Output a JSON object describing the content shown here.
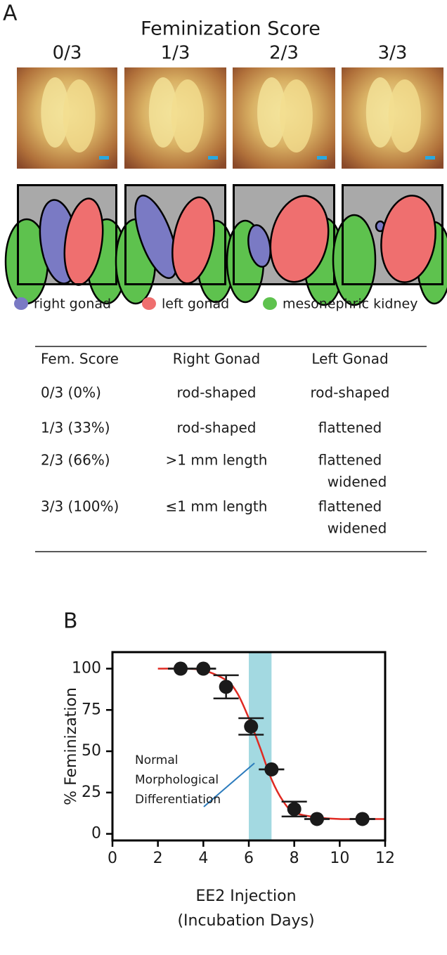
{
  "panel_a": {
    "label": "A",
    "title": "Feminization Score",
    "scores": [
      "0/3",
      "1/3",
      "2/3",
      "3/3"
    ],
    "legend": [
      {
        "label": "right gonad",
        "color": "#7a7ac4"
      },
      {
        "label": "left gonad",
        "color": "#ef6f6f"
      },
      {
        "label": "mesonephric kidney",
        "color": "#5ec24e"
      }
    ],
    "table": {
      "header": [
        "Fem. Score",
        "Right Gonad",
        "Left Gonad"
      ],
      "rows": [
        [
          [
            "0/3 (0%)"
          ],
          [
            "rod-shaped"
          ],
          [
            "rod-shaped"
          ]
        ],
        [
          [
            "1/3 (33%)"
          ],
          [
            "rod-shaped"
          ],
          [
            "flattened"
          ]
        ],
        [
          [
            "2/3 (66%)"
          ],
          [
            ">1 mm length"
          ],
          [
            "flattened",
            "widened"
          ]
        ],
        [
          [
            "3/3 (100%)"
          ],
          [
            "≤1 mm length"
          ],
          [
            "flattened",
            "widened"
          ]
        ]
      ]
    }
  },
  "chart_data": {
    "type": "scatter",
    "panel_label": "B",
    "ylabel": "% Feminization",
    "xlabel": [
      "EE2 Injection",
      "(Incubation Days)"
    ],
    "x": [
      3,
      4,
      5,
      6.1,
      7,
      8,
      9,
      11
    ],
    "values": [
      100,
      100,
      89,
      65,
      39,
      15,
      9,
      9
    ],
    "errors": [
      0,
      0,
      7,
      5,
      0,
      4.5,
      0,
      0
    ],
    "color": "#1a1a1a",
    "fit": {
      "color": "#e02a22",
      "x": [
        2,
        3,
        4,
        5,
        5.5,
        6,
        6.5,
        7,
        7.5,
        8,
        9,
        10,
        11,
        12
      ],
      "values": [
        100,
        100,
        99,
        93,
        85,
        70,
        52,
        33,
        20,
        13,
        10,
        9,
        9,
        9
      ]
    },
    "band": {
      "x": [
        6,
        7
      ],
      "color": "#a3d9e1"
    },
    "annotation": {
      "lines": [
        "Normal",
        "Morphological",
        "Differentiation"
      ],
      "color": "#2b7bbd"
    },
    "xlim": [
      0,
      12
    ],
    "xticks": [
      0,
      2,
      4,
      6,
      8,
      10,
      12
    ],
    "ylim": [
      -4,
      110
    ],
    "yticks": [
      0,
      25,
      50,
      75,
      100
    ]
  }
}
